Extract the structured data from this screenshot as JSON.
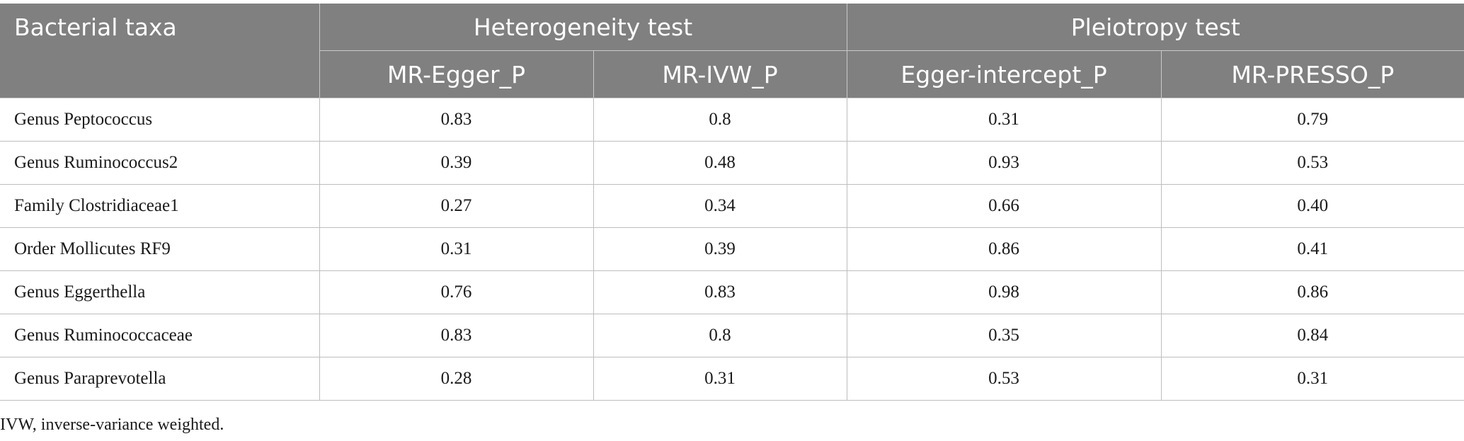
{
  "header": {
    "first_col": "Bacterial taxa",
    "groups": [
      "Heterogeneity test",
      "Pleiotropy test"
    ],
    "columns": [
      "MR-Egger_P",
      "MR-IVW_P",
      "Egger-intercept_P",
      "MR-PRESSO_P"
    ]
  },
  "rows": [
    {
      "taxon": "Genus Peptococcus",
      "values": [
        "0.83",
        "0.8",
        "0.31",
        "0.79"
      ]
    },
    {
      "taxon": "Genus Ruminococcus2",
      "values": [
        "0.39",
        "0.48",
        "0.93",
        "0.53"
      ]
    },
    {
      "taxon": "Family Clostridiaceae1",
      "values": [
        "0.27",
        "0.34",
        "0.66",
        "0.40"
      ]
    },
    {
      "taxon": "Order Mollicutes RF9",
      "values": [
        "0.31",
        "0.39",
        "0.86",
        "0.41"
      ]
    },
    {
      "taxon": "Genus Eggerthella",
      "values": [
        "0.76",
        "0.83",
        "0.98",
        "0.86"
      ]
    },
    {
      "taxon": "Genus Ruminococcaceae",
      "values": [
        "0.83",
        "0.8",
        "0.35",
        "0.84"
      ]
    },
    {
      "taxon": "Genus Paraprevotella",
      "values": [
        "0.28",
        "0.31",
        "0.53",
        "0.31"
      ]
    }
  ],
  "footnote": "IVW, inverse-variance weighted.",
  "colors": {
    "header_bg": "#808080",
    "header_text": "#ffffff",
    "grid": "#bdbdbd"
  }
}
